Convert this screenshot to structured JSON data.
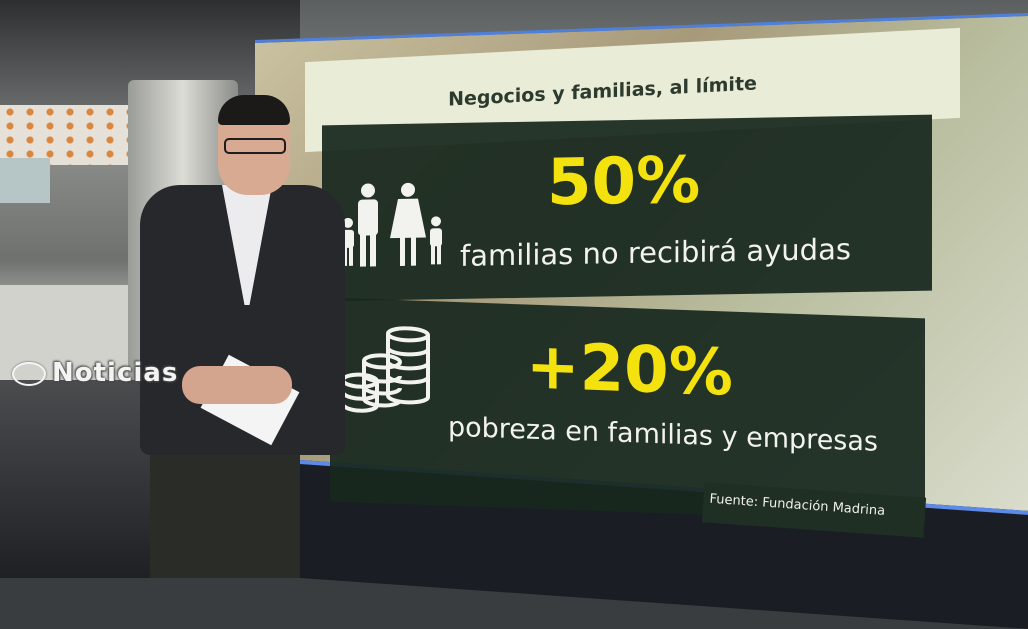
{
  "broadcaster_logo": "Noticias",
  "graphic": {
    "title": "Negocios y familias, al límite",
    "stat1": {
      "value": "50%",
      "label": "familias no recibirá ayudas",
      "icon": "family-icon"
    },
    "stat2": {
      "value": "+20%",
      "label": "pobreza en familias y empresas",
      "icon": "coins-icon"
    },
    "source": "Fuente: Fundación Madrina"
  },
  "colors": {
    "highlight": "#f4e20e",
    "box": "#18281e",
    "header": "#e9ecd6"
  }
}
